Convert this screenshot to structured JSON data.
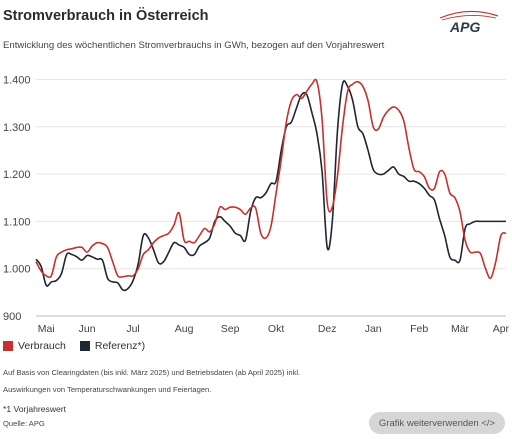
{
  "header": {
    "title": "Stromverbrauch in Österreich",
    "subtitle": "Entwicklung des wöchentlichen Stromverbrauchs in GWh, bezogen auf den Vorjahreswert"
  },
  "logo": {
    "text": "APG",
    "icon": "apg-logo"
  },
  "legend": {
    "items": [
      {
        "label": "Verbrauch",
        "color": "#c8302b"
      },
      {
        "label": "Referenz*)",
        "color": "#1e2633"
      }
    ]
  },
  "notes": {
    "line1": "Auf Basis von Clearingdaten (bis inkl. März 2025) und Betriebsdaten (ab April 2025) inkl.",
    "line2": "Auswirkungen von Temperaturschwankungen und Feiertagen.",
    "footnote": "*1 Vorjahreswert",
    "source": "Quelle: APG"
  },
  "share_button": {
    "label": "Grafik weiterverwenden </>"
  },
  "chart_data": {
    "type": "line",
    "x_unit": "week",
    "categories": [
      "Mai",
      "Jun",
      "Jul",
      "Aug",
      "Sep",
      "Okt",
      "Dez",
      "Jan",
      "Feb",
      "Mär",
      "Apr"
    ],
    "category_positions": [
      1,
      5,
      9.5,
      14.5,
      19,
      23.5,
      28.5,
      33,
      37.5,
      41.5,
      45.5
    ],
    "ylim": [
      900,
      1420
    ],
    "yticks": [
      900,
      1000,
      1100,
      1200,
      1300,
      1400
    ],
    "ytick_labels": [
      "900",
      "1.000",
      "1.100",
      "1.200",
      "1.300",
      "1.400"
    ],
    "grid": true,
    "legend_position": "bottom-left",
    "series": [
      {
        "name": "Verbrauch",
        "color": "#c8302b",
        "x": [
          0,
          0.5,
          1,
          1.5,
          2,
          2.5,
          3,
          3.5,
          4,
          4.5,
          5,
          5.5,
          6,
          6.5,
          7,
          7.5,
          8,
          8.5,
          9,
          9.5,
          10,
          10.5,
          11,
          11.5,
          12,
          12.5,
          13,
          13.5,
          14,
          14.5,
          15,
          15.5,
          16,
          16.5,
          17,
          17.5,
          18,
          18.5,
          19,
          19.5,
          20,
          20.5,
          21,
          21.5,
          22,
          22.5,
          23,
          23.5,
          24,
          24.5,
          25,
          25.5,
          26,
          26.5,
          27,
          27.5,
          28,
          28.5,
          29,
          29.5,
          30,
          30.5,
          31,
          31.5,
          32,
          32.5,
          33,
          33.5,
          34,
          34.5,
          35,
          35.5,
          36,
          36.5,
          37,
          37.5,
          38,
          38.5,
          39,
          39.5,
          40,
          40.5,
          41,
          41.5,
          42,
          42.5,
          43,
          43.5,
          44,
          44.5,
          45,
          45.5,
          46
        ],
        "values": [
          1015,
          995,
          985,
          985,
          1025,
          1035,
          1040,
          1042,
          1045,
          1045,
          1035,
          1048,
          1055,
          1053,
          1045,
          1015,
          985,
          983,
          985,
          985,
          1000,
          1030,
          1040,
          1055,
          1065,
          1070,
          1075,
          1092,
          1118,
          1060,
          1058,
          1055,
          1070,
          1085,
          1078,
          1095,
          1130,
          1125,
          1130,
          1130,
          1125,
          1115,
          1128,
          1128,
          1075,
          1065,
          1090,
          1160,
          1230,
          1310,
          1355,
          1368,
          1360,
          1375,
          1390,
          1395,
          1315,
          1140,
          1130,
          1195,
          1300,
          1375,
          1390,
          1395,
          1385,
          1355,
          1300,
          1295,
          1320,
          1335,
          1342,
          1335,
          1312,
          1255,
          1210,
          1205,
          1195,
          1170,
          1170,
          1205,
          1200,
          1160,
          1150,
          1120,
          1060,
          1035,
          1035,
          1032,
          1000,
          980,
          1015,
          1070,
          1075
        ]
      },
      {
        "name": "Referenz*)",
        "color": "#1e2633",
        "x": [
          0,
          0.5,
          1,
          1.5,
          2,
          2.5,
          3,
          3.5,
          4,
          4.5,
          5,
          5.5,
          6,
          6.5,
          7,
          7.5,
          8,
          8.5,
          9,
          9.5,
          10,
          10.5,
          11,
          11.5,
          12,
          12.5,
          13,
          13.5,
          14,
          14.5,
          15,
          15.5,
          16,
          16.5,
          17,
          17.5,
          18,
          18.5,
          19,
          19.5,
          20,
          20.5,
          21,
          21.5,
          22,
          22.5,
          23,
          23.5,
          24,
          24.5,
          25,
          25.5,
          26,
          26.5,
          27,
          27.5,
          28,
          28.5,
          29,
          29.5,
          30,
          30.5,
          31,
          31.5,
          32,
          32.5,
          33,
          33.5,
          34,
          34.5,
          35,
          35.5,
          36,
          36.5,
          37,
          37.5,
          38,
          38.5,
          39,
          39.5,
          40,
          40.5,
          41,
          41.5,
          42,
          42.5,
          43,
          43.5,
          44,
          44.5,
          45,
          45.5,
          46
        ],
        "values": [
          1020,
          1005,
          965,
          972,
          975,
          990,
          1030,
          1030,
          1025,
          1018,
          1028,
          1025,
          1020,
          1018,
          980,
          972,
          970,
          955,
          958,
          975,
          1010,
          1070,
          1065,
          1040,
          1012,
          1015,
          1035,
          1055,
          1050,
          1045,
          1030,
          1030,
          1048,
          1055,
          1065,
          1100,
          1110,
          1100,
          1090,
          1075,
          1070,
          1060,
          1120,
          1150,
          1150,
          1160,
          1180,
          1185,
          1250,
          1300,
          1310,
          1340,
          1368,
          1368,
          1330,
          1285,
          1205,
          1045,
          1100,
          1290,
          1390,
          1385,
          1355,
          1300,
          1285,
          1250,
          1210,
          1200,
          1200,
          1208,
          1215,
          1200,
          1195,
          1185,
          1185,
          1180,
          1170,
          1155,
          1145,
          1105,
          1070,
          1025,
          1018,
          1018,
          1085,
          1095,
          1100,
          1100,
          1100,
          1100,
          1100,
          1100,
          1100
        ]
      }
    ]
  }
}
